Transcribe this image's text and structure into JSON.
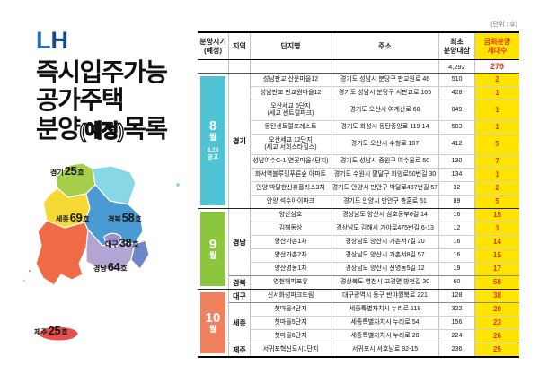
{
  "branding": {
    "logo_l": "L",
    "logo_h": "H",
    "logo_color_l": "#2a6cb8",
    "logo_color_h": "#154a86",
    "title_line1": "즉시입주가능",
    "title_line2": "공가주택",
    "title_line3_a": "분양",
    "title_line3_b": "(예정)",
    "title_line3_c": "목록"
  },
  "map": {
    "regions": [
      {
        "id": "gyeonggi",
        "name": "경기",
        "count": "25",
        "unit": "호",
        "color": "#a6ce4a"
      },
      {
        "id": "sejong",
        "name": "세종",
        "count": "69",
        "unit": "호",
        "color": "#f6d935"
      },
      {
        "id": "gyeongbuk",
        "name": "경북",
        "count": "58",
        "unit": "호",
        "color": "#4a9ad4"
      },
      {
        "id": "daegu",
        "name": "대구",
        "count": "38",
        "unit": "호",
        "color": "#9d8fca"
      },
      {
        "id": "gyeongnam",
        "name": "경남",
        "count": "64",
        "unit": "호",
        "color": "#b3a5d3"
      },
      {
        "id": "jeju",
        "name": "제주",
        "count": "25",
        "unit": "호",
        "color": "#e8504f"
      }
    ],
    "other_region_colors": {
      "gangwon": "#87d7e4",
      "jeolla": "#ef6a45",
      "southeast": "#6f87c8",
      "ulleungdo": "#87d7e4"
    }
  },
  "table": {
    "unit_note": "(단위 : 호)",
    "columns": {
      "schedule": "분양시기\n(예정)",
      "region": "지역",
      "complex": "단지명",
      "address": "주소",
      "first_target": "최초\n분양대상",
      "current_units": "금회분양\n세대수"
    },
    "totals": {
      "first_target": "4,292",
      "current_units": "279"
    },
    "accent": {
      "highlight_bg": "#ffe400",
      "highlight_text": "#e8380d"
    },
    "groups": [
      {
        "month": "8",
        "month_suffix": "월",
        "note": "8.28\n공고",
        "color": "#4fc3d4",
        "regions": [
          {
            "region": "경기",
            "rows": [
              {
                "name": "성남판교 산운마을12",
                "addr": "경기도 성남시 분당구 판교원로 46",
                "first": "510",
                "current": "2"
              },
              {
                "name": "성남판교 판교원마을12",
                "addr": "경기도 성남시 분당구 서판교로 165",
                "first": "428",
                "current": "1"
              },
              {
                "name": "오산세교 5단지\n(세교 센트럴파크)",
                "addr": "경기도 오산시 여계산로 60",
                "first": "849",
                "current": "1",
                "two_line": true
              },
              {
                "name": "동탄센트럴포레스트",
                "addr": "경기도 화성시 동탄중앙로 119-14",
                "first": "503",
                "current": "1"
              },
              {
                "name": "오산세교 12단지\n(세교 서희스타힐스)",
                "addr": "경기도 오산시 수청로 107",
                "first": "412",
                "current": "5",
                "two_line": true
              },
              {
                "name": "성남여수C-1(연꽃마을4단지)",
                "addr": "경기도 성남시 중원구 여수울로 50",
                "first": "130",
                "current": "7"
              },
              {
                "name": "화서역블루밍푸른숲 아파트",
                "addr": "경기도 수원시 팔달구 화양로50번길 30",
                "first": "134",
                "current": "1"
              },
              {
                "name": "안양 박달한신휴플러스3차",
                "addr": "경기도 안양시 만안구 박달로497번길 57",
                "first": "32",
                "current": "2"
              },
              {
                "name": "안양 석수아이파크",
                "addr": "경기도 안양시 만안구 충훈로 51",
                "first": "89",
                "current": "5"
              }
            ]
          }
        ]
      },
      {
        "month": "9",
        "month_suffix": "월",
        "note": "",
        "color": "#8cc63f",
        "regions": [
          {
            "region": "경남",
            "rows": [
              {
                "name": "양산삼호",
                "addr": "경상남도 양산시 삼호동부6길 14",
                "first": "16",
                "current": "15"
              },
              {
                "name": "김해동상",
                "addr": "경상남도 김해시 가야로475번길 6-13",
                "first": "12",
                "current": "3"
              },
              {
                "name": "양산가촌1차",
                "addr": "경상남도 양산시 가촌서7길 20",
                "first": "16",
                "current": "14"
              },
              {
                "name": "양산가촌2차",
                "addr": "경상남도 양산시 가촌서8길 57",
                "first": "16",
                "current": "15"
              },
              {
                "name": "양산명동1차",
                "addr": "경상남도 양산시 신명동5길 12",
                "first": "19",
                "current": "17"
              }
            ]
          },
          {
            "region": "경북",
            "rows": [
              {
                "name": "영천해피포유",
                "addr": "경상북도 영천시 고경면 방천길 30",
                "first": "60",
                "current": "58"
              }
            ]
          }
        ]
      },
      {
        "month": "10",
        "month_suffix": "월",
        "note": "",
        "color": "#f0815f",
        "regions": [
          {
            "region": "대구",
            "rows": [
              {
                "name": "신서화성파크드림",
                "addr": "대구광역시 동구 반야월북로 221",
                "first": "128",
                "current": "38"
              }
            ]
          },
          {
            "region": "세종",
            "rows": [
              {
                "name": "첫마을4단지",
                "addr": "세종특별자치시 누리로 119",
                "first": "322",
                "current": "20"
              },
              {
                "name": "첫마을5단지",
                "addr": "세종특별자치시 누리로 54",
                "first": "156",
                "current": "23"
              },
              {
                "name": "첫마을6단지",
                "addr": "세종특별자치시 누리로 28",
                "first": "224",
                "current": "26"
              }
            ]
          },
          {
            "region": "제주",
            "rows": [
              {
                "name": "서귀포혁신도시1단지",
                "addr": "서귀포시 서호남로 92-15",
                "first": "236",
                "current": "25"
              }
            ]
          }
        ]
      }
    ]
  }
}
